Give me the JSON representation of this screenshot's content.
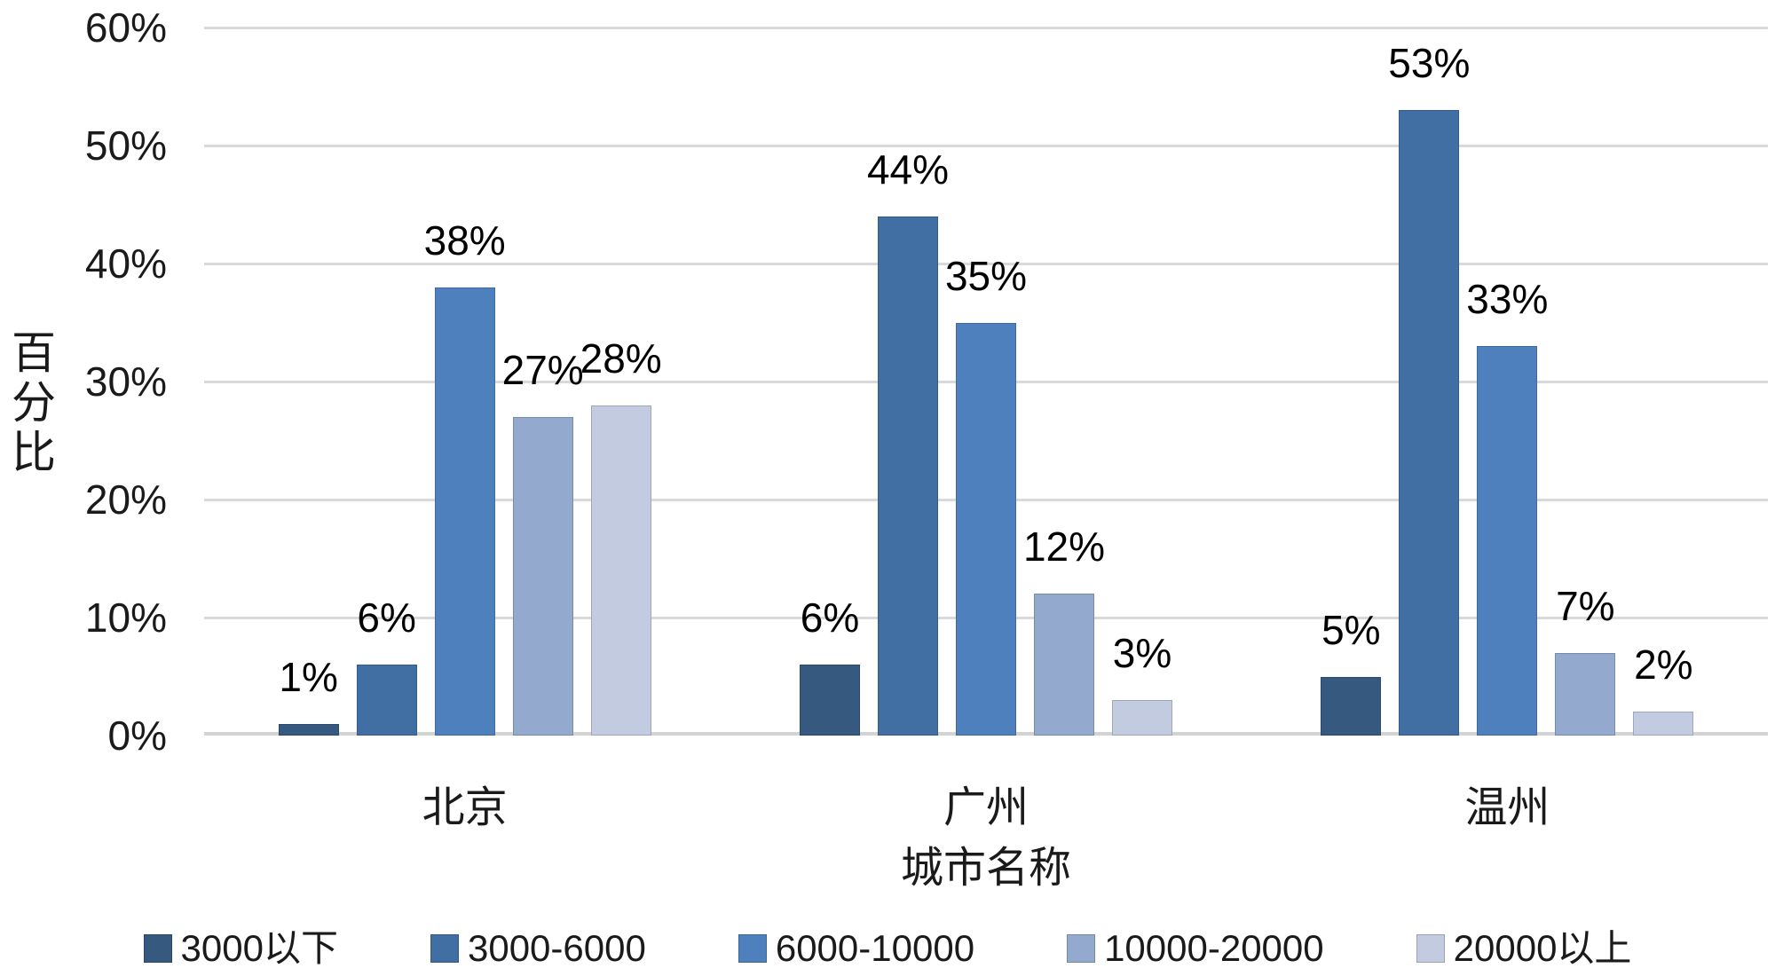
{
  "chart_data": {
    "type": "bar",
    "title": "",
    "xlabel": "城市名称",
    "ylabel": "百分比",
    "categories": [
      "北京",
      "广州",
      "温州"
    ],
    "series": [
      {
        "name": "3000以下",
        "color": "#35597f",
        "values": [
          1,
          6,
          5
        ],
        "labels": [
          "1%",
          "6%",
          "5%"
        ]
      },
      {
        "name": "3000-6000",
        "color": "#416fa4",
        "values": [
          6,
          44,
          53
        ],
        "labels": [
          "6%",
          "44%",
          "53%"
        ]
      },
      {
        "name": "6000-10000",
        "color": "#4e80bd",
        "values": [
          38,
          35,
          33
        ],
        "labels": [
          "38%",
          "35%",
          "33%"
        ]
      },
      {
        "name": "10000-20000",
        "color": "#93a9cd",
        "values": [
          27,
          12,
          7
        ],
        "labels": [
          "27%",
          "12%",
          "7%"
        ]
      },
      {
        "name": "20000以上",
        "color": "#c3cbe1",
        "values": [
          28,
          3,
          2
        ],
        "labels": [
          "28%",
          "3%",
          "2%"
        ]
      }
    ],
    "ylim": [
      0,
      60
    ],
    "ytick_step": 10,
    "ytick_labels": [
      "0%",
      "10%",
      "20%",
      "30%",
      "40%",
      "50%",
      "60%"
    ],
    "grid": "horizontal",
    "gridline_color": "#d9d9d9",
    "legend_position": "bottom",
    "label_format": "percent-outside-end",
    "text_color": "#1a1a1a"
  }
}
